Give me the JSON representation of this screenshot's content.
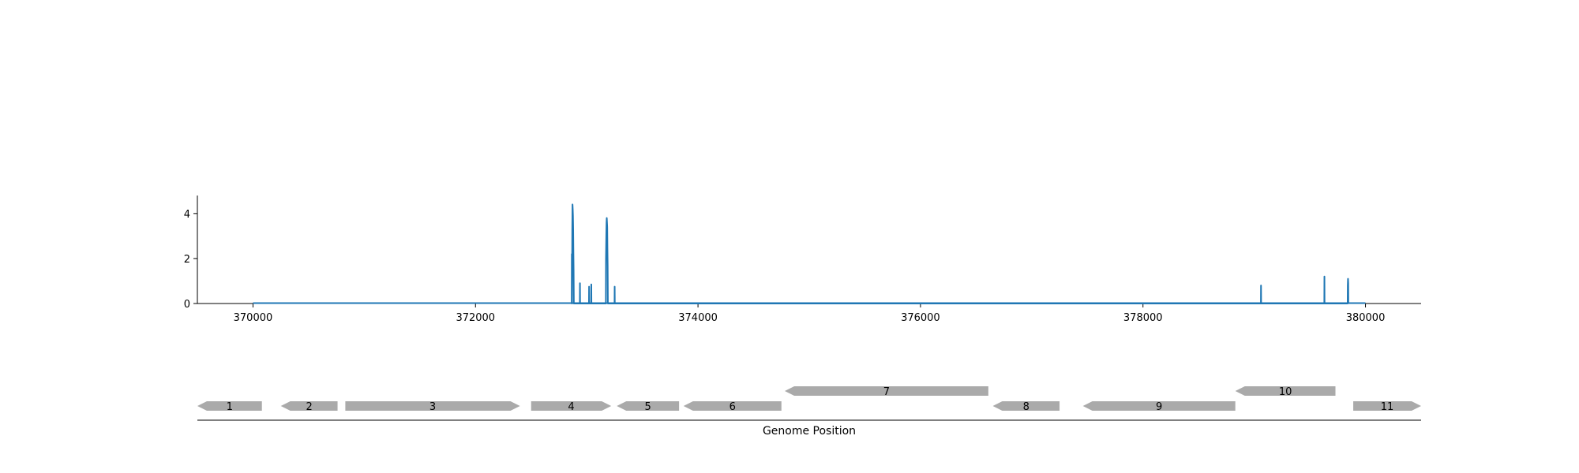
{
  "chart_data": {
    "type": "line",
    "title": "",
    "xlabel": "",
    "ylabel": "",
    "xlim": [
      369500,
      380500
    ],
    "ylim": [
      0,
      4.8
    ],
    "x_ticks": [
      370000,
      372000,
      374000,
      376000,
      378000,
      380000
    ],
    "y_ticks": [
      0,
      2,
      4
    ],
    "color": "#1f77b4",
    "baseline": {
      "x_start": 370000,
      "x_end": 380000,
      "y": 0
    },
    "series": [
      {
        "points": [
          [
            372865,
            0
          ],
          [
            372866,
            2.2
          ],
          [
            372867,
            0
          ],
          [
            372870,
            3.3
          ],
          [
            372872,
            4.4
          ],
          [
            372874,
            4.2
          ],
          [
            372876,
            3.9
          ],
          [
            372878,
            3.3
          ],
          [
            372880,
            2.3
          ],
          [
            372882,
            1.5
          ],
          [
            372884,
            0
          ],
          [
            372938,
            0
          ],
          [
            372939,
            0.9
          ],
          [
            372940,
            0
          ],
          [
            373020,
            0
          ],
          [
            373021,
            0.75
          ],
          [
            373022,
            0
          ],
          [
            373040,
            0
          ],
          [
            373041,
            0.85
          ],
          [
            373042,
            0
          ],
          [
            373172,
            0
          ],
          [
            373173,
            2.0
          ],
          [
            373176,
            3.1
          ],
          [
            373178,
            3.6
          ],
          [
            373180,
            3.8
          ],
          [
            373182,
            3.6
          ],
          [
            373184,
            3.4
          ],
          [
            373186,
            2.4
          ],
          [
            373188,
            1.7
          ],
          [
            373190,
            0
          ],
          [
            373250,
            0
          ],
          [
            373251,
            0.75
          ],
          [
            373252,
            0
          ],
          [
            379060,
            0
          ],
          [
            379061,
            0.8
          ],
          [
            379062,
            0
          ],
          [
            379630,
            0
          ],
          [
            379631,
            1.2
          ],
          [
            379632,
            0
          ],
          [
            379840,
            0
          ],
          [
            379841,
            0.8
          ],
          [
            379843,
            1.1
          ],
          [
            379845,
            0.9
          ],
          [
            379846,
            0
          ]
        ]
      }
    ],
    "genes_axis_label": "Genome Position",
    "gene_color": "#aaaaaa",
    "genes": [
      {
        "label": "1",
        "start": 369500,
        "end": 370080,
        "strand": "-",
        "track": 0
      },
      {
        "label": "2",
        "start": 370250,
        "end": 370760,
        "strand": "-",
        "track": 0
      },
      {
        "label": "3",
        "start": 370830,
        "end": 372400,
        "strand": "+",
        "track": 0
      },
      {
        "label": "4",
        "start": 372500,
        "end": 373220,
        "strand": "+",
        "track": 0
      },
      {
        "label": "5",
        "start": 373270,
        "end": 373830,
        "strand": "-",
        "track": 0
      },
      {
        "label": "6",
        "start": 373870,
        "end": 374750,
        "strand": "-",
        "track": 0
      },
      {
        "label": "7",
        "start": 374780,
        "end": 376610,
        "strand": "-",
        "track": 1
      },
      {
        "label": "8",
        "start": 376650,
        "end": 377250,
        "strand": "-",
        "track": 0
      },
      {
        "label": "9",
        "start": 377460,
        "end": 378830,
        "strand": "-",
        "track": 0
      },
      {
        "label": "10",
        "start": 378830,
        "end": 379730,
        "strand": "-",
        "track": 1
      },
      {
        "label": "11",
        "start": 379890,
        "end": 380500,
        "strand": "+",
        "track": 0
      }
    ]
  }
}
